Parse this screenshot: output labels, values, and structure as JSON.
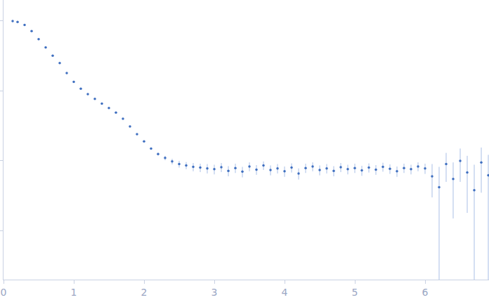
{
  "chart_data": {
    "type": "scatter",
    "log": "y",
    "grid": false,
    "tick_labels": "x",
    "marker": "circle",
    "color": "#3f6fc0",
    "error_color": "#a9bfe6",
    "xlim": [
      0,
      6.91
    ],
    "ylim": [
      0.0002,
      2
    ],
    "xticks": [
      0,
      1,
      2,
      3,
      4,
      5,
      6
    ],
    "yticks": [
      0.001,
      0.01,
      0.1,
      1
    ],
    "x": [
      0.13,
      0.2,
      0.3,
      0.4,
      0.5,
      0.6,
      0.7,
      0.8,
      0.9,
      1.0,
      1.1,
      1.2,
      1.3,
      1.4,
      1.5,
      1.6,
      1.7,
      1.8,
      1.9,
      2.0,
      2.1,
      2.2,
      2.3,
      2.4,
      2.5,
      2.6,
      2.7,
      2.8,
      2.9,
      3.0,
      3.1,
      3.2,
      3.3,
      3.4,
      3.5,
      3.6,
      3.7,
      3.8,
      3.9,
      4.0,
      4.1,
      4.2,
      4.3,
      4.4,
      4.5,
      4.6,
      4.7,
      4.8,
      4.9,
      5.0,
      5.1,
      5.2,
      5.3,
      5.4,
      5.5,
      5.6,
      5.7,
      5.8,
      5.9,
      6.0,
      6.1,
      6.2,
      6.3,
      6.4,
      6.5,
      6.6,
      6.7,
      6.8,
      6.9
    ],
    "values": [
      1.0,
      0.97,
      0.88,
      0.72,
      0.55,
      0.42,
      0.32,
      0.25,
      0.18,
      0.135,
      0.108,
      0.09,
      0.077,
      0.066,
      0.057,
      0.049,
      0.04,
      0.031,
      0.024,
      0.019,
      0.015,
      0.0125,
      0.011,
      0.0098,
      0.009,
      0.0086,
      0.0082,
      0.008,
      0.0078,
      0.0076,
      0.0081,
      0.0072,
      0.0079,
      0.007,
      0.0083,
      0.0075,
      0.0086,
      0.0074,
      0.0078,
      0.0071,
      0.008,
      0.0066,
      0.0079,
      0.0083,
      0.0074,
      0.0078,
      0.0072,
      0.0081,
      0.0076,
      0.0079,
      0.0073,
      0.008,
      0.0075,
      0.0082,
      0.0077,
      0.0071,
      0.0079,
      0.0076,
      0.0083,
      0.0078,
      0.006,
      0.0042,
      0.009,
      0.0055,
      0.01,
      0.0068,
      0.0038,
      0.0095,
      0.0062
    ],
    "error": [
      0.01,
      0.01,
      0.009,
      0.007,
      0.005,
      0.004,
      0.003,
      0.0025,
      0.002,
      0.0015,
      0.0012,
      0.001,
      0.0009,
      0.0008,
      0.0007,
      0.0006,
      0.0005,
      0.0005,
      0.0004,
      0.0004,
      0.0005,
      0.0006,
      0.0008,
      0.0009,
      0.001,
      0.001,
      0.0011,
      0.0011,
      0.0012,
      0.0012,
      0.0012,
      0.0012,
      0.0012,
      0.0012,
      0.0012,
      0.0012,
      0.0012,
      0.0012,
      0.0012,
      0.0012,
      0.0012,
      0.0012,
      0.0012,
      0.0012,
      0.0012,
      0.0012,
      0.0012,
      0.0012,
      0.0012,
      0.0012,
      0.0012,
      0.0012,
      0.0012,
      0.0012,
      0.0012,
      0.0012,
      0.0012,
      0.0012,
      0.0012,
      0.0013,
      0.003,
      0.004,
      0.004,
      0.004,
      0.005,
      0.005,
      0.005,
      0.006,
      0.006
    ]
  }
}
